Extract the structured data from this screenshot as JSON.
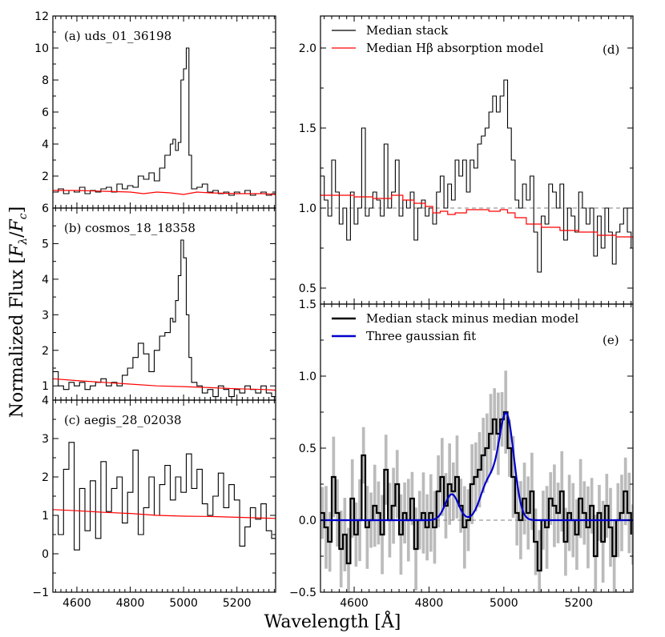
{
  "figure": {
    "xlabel": "Wavelength [Å]",
    "ylabel": "Normalized Flux [F_λ/F_c]",
    "ylabel_parts": {
      "prefix": "Normalized Flux [",
      "f1": "F",
      "sub1": "λ",
      "slash": "/",
      "f2": "F",
      "sub2": "c",
      "suffix": "]"
    }
  },
  "chart_data": [
    {
      "id": "a",
      "type": "line",
      "label": "(a) uds_01_36198",
      "xlim": [
        4510,
        5345
      ],
      "ylim": [
        0,
        12
      ],
      "yticks": [
        2,
        4,
        6,
        8,
        10,
        12
      ],
      "xticks": [],
      "series": [
        {
          "name": "Spectrum",
          "style": "step",
          "color": "#000000",
          "x": [
            4510,
            4530,
            4550,
            4570,
            4590,
            4610,
            4630,
            4650,
            4670,
            4690,
            4710,
            4730,
            4750,
            4770,
            4790,
            4810,
            4830,
            4850,
            4870,
            4890,
            4910,
            4930,
            4950,
            4960,
            4970,
            4980,
            4990,
            5000,
            5010,
            5020,
            5030,
            5050,
            5070,
            5090,
            5110,
            5130,
            5150,
            5170,
            5190,
            5210,
            5230,
            5250,
            5270,
            5290,
            5310,
            5330,
            5345
          ],
          "y": [
            1.0,
            1.2,
            0.9,
            1.1,
            1.0,
            1.3,
            0.9,
            1.1,
            1.0,
            1.2,
            1.3,
            1.0,
            1.5,
            1.2,
            1.4,
            1.3,
            2.0,
            1.8,
            2.2,
            1.7,
            2.5,
            3.3,
            4.0,
            4.3,
            3.6,
            4.1,
            8.0,
            8.7,
            10.0,
            3.3,
            1.2,
            1.3,
            1.5,
            1.0,
            1.1,
            0.9,
            1.0,
            0.8,
            1.0,
            0.9,
            1.1,
            0.8,
            0.9,
            1.0,
            0.8,
            0.9,
            0.8
          ]
        },
        {
          "name": "Absorption model",
          "style": "line",
          "color": "#ff0000",
          "x": [
            4510,
            4600,
            4700,
            4800,
            4850,
            4900,
            4950,
            5000,
            5050,
            5100,
            5200,
            5300,
            5345
          ],
          "y": [
            1.1,
            1.1,
            1.05,
            1.0,
            0.9,
            1.0,
            0.95,
            0.85,
            1.0,
            0.95,
            0.9,
            0.9,
            0.85
          ]
        }
      ]
    },
    {
      "id": "b",
      "type": "line",
      "label": "(b) cosmos_18_18358",
      "xlim": [
        4510,
        5345
      ],
      "ylim": [
        0.6,
        6
      ],
      "yticks": [
        1,
        2,
        3,
        4,
        5,
        6
      ],
      "xticks": [],
      "series": [
        {
          "name": "Spectrum",
          "style": "step",
          "color": "#000000",
          "x": [
            4510,
            4530,
            4550,
            4570,
            4590,
            4610,
            4630,
            4650,
            4670,
            4690,
            4710,
            4730,
            4750,
            4770,
            4790,
            4810,
            4830,
            4850,
            4870,
            4890,
            4910,
            4930,
            4950,
            4960,
            4970,
            4980,
            4990,
            5000,
            5010,
            5020,
            5030,
            5050,
            5070,
            5090,
            5110,
            5130,
            5150,
            5170,
            5190,
            5210,
            5230,
            5250,
            5270,
            5290,
            5310,
            5330,
            5345
          ],
          "y": [
            1.4,
            1.0,
            0.9,
            1.1,
            1.0,
            1.1,
            0.9,
            1.0,
            1.1,
            1.2,
            1.0,
            1.1,
            1.0,
            1.3,
            1.5,
            1.8,
            2.2,
            1.9,
            1.4,
            2.0,
            2.4,
            2.5,
            2.9,
            2.8,
            3.4,
            4.1,
            5.1,
            4.6,
            3.0,
            1.8,
            1.1,
            1.0,
            0.8,
            0.9,
            0.7,
            1.0,
            0.9,
            0.7,
            0.9,
            0.8,
            1.0,
            0.9,
            0.8,
            1.0,
            0.8,
            0.7,
            0.9
          ]
        },
        {
          "name": "Absorption model",
          "style": "line",
          "color": "#ff0000",
          "x": [
            4510,
            4600,
            4700,
            4800,
            4900,
            5000,
            5100,
            5200,
            5300,
            5345
          ],
          "y": [
            1.2,
            1.15,
            1.1,
            1.05,
            1.0,
            0.98,
            0.95,
            0.92,
            0.9,
            0.88
          ]
        }
      ]
    },
    {
      "id": "c",
      "type": "line",
      "label": "(c) aegis_28_02038",
      "xlim": [
        4510,
        5345
      ],
      "ylim": [
        -1,
        4
      ],
      "yticks": [
        -1,
        0,
        1,
        2,
        3,
        4
      ],
      "xticks": [
        4600,
        4800,
        5000,
        5200
      ],
      "series": [
        {
          "name": "Spectrum",
          "style": "step",
          "color": "#000000",
          "x": [
            4510,
            4530,
            4550,
            4570,
            4590,
            4610,
            4630,
            4650,
            4670,
            4690,
            4710,
            4730,
            4750,
            4770,
            4790,
            4810,
            4830,
            4850,
            4870,
            4890,
            4910,
            4930,
            4950,
            4970,
            4990,
            5010,
            5030,
            5050,
            5070,
            5090,
            5110,
            5130,
            5150,
            5170,
            5190,
            5210,
            5230,
            5250,
            5270,
            5290,
            5310,
            5330,
            5345
          ],
          "y": [
            1.0,
            0.5,
            2.2,
            2.9,
            0.1,
            1.7,
            0.6,
            1.9,
            0.4,
            2.4,
            1.1,
            1.7,
            2.0,
            0.8,
            1.6,
            2.7,
            0.5,
            1.2,
            2.0,
            1.0,
            1.8,
            2.3,
            1.4,
            2.0,
            1.6,
            2.6,
            1.7,
            2.2,
            1.3,
            1.0,
            1.5,
            2.1,
            1.2,
            1.8,
            1.4,
            0.2,
            0.7,
            1.2,
            0.9,
            1.3,
            0.6,
            0.4,
            0.0
          ]
        },
        {
          "name": "Absorption model",
          "style": "line",
          "color": "#ff0000",
          "x": [
            4510,
            4600,
            4700,
            4800,
            4900,
            5000,
            5100,
            5200,
            5300,
            5345
          ],
          "y": [
            1.15,
            1.12,
            1.08,
            1.05,
            1.0,
            0.98,
            0.97,
            0.95,
            0.93,
            0.92
          ]
        }
      ]
    },
    {
      "id": "d",
      "type": "line",
      "label": "(d)",
      "xlim": [
        4510,
        5345
      ],
      "ylim": [
        0.4,
        2.2
      ],
      "yticks": [
        0.5,
        1.0,
        1.5,
        2.0
      ],
      "xticks": [],
      "legend": [
        "Median stack",
        "Median Hβ absorption model"
      ],
      "series": [
        {
          "name": "Median stack",
          "style": "step",
          "color": "#000000",
          "x": [
            4510,
            4520,
            4530,
            4540,
            4550,
            4560,
            4570,
            4580,
            4590,
            4600,
            4610,
            4620,
            4630,
            4640,
            4650,
            4660,
            4670,
            4680,
            4690,
            4700,
            4710,
            4720,
            4730,
            4740,
            4750,
            4760,
            4770,
            4780,
            4790,
            4800,
            4810,
            4820,
            4830,
            4840,
            4850,
            4860,
            4870,
            4880,
            4890,
            4900,
            4910,
            4920,
            4930,
            4940,
            4950,
            4960,
            4970,
            4980,
            4990,
            5000,
            5010,
            5020,
            5030,
            5040,
            5050,
            5060,
            5070,
            5080,
            5090,
            5100,
            5110,
            5120,
            5130,
            5140,
            5150,
            5160,
            5170,
            5180,
            5190,
            5200,
            5210,
            5220,
            5230,
            5240,
            5250,
            5260,
            5270,
            5280,
            5290,
            5300,
            5310,
            5320,
            5330,
            5340
          ],
          "y": [
            1.2,
            1.05,
            0.95,
            1.3,
            1.1,
            0.9,
            1.0,
            0.8,
            1.1,
            0.9,
            1.0,
            1.5,
            0.95,
            1.0,
            1.1,
            1.05,
            0.95,
            1.4,
            1.0,
            1.1,
            1.3,
            0.95,
            1.05,
            1.0,
            1.1,
            0.8,
            1.0,
            1.05,
            0.95,
            1.0,
            0.9,
            1.1,
            1.2,
            1.0,
            1.15,
            1.05,
            1.3,
            1.2,
            1.3,
            1.1,
            1.3,
            1.25,
            1.4,
            1.45,
            1.5,
            1.6,
            1.7,
            1.6,
            1.7,
            1.8,
            1.5,
            1.3,
            1.05,
            1.0,
            1.15,
            1.05,
            1.2,
            0.85,
            0.6,
            0.95,
            0.9,
            1.15,
            1.1,
            1.0,
            1.15,
            0.8,
            1.0,
            0.95,
            0.85,
            1.1,
            1.0,
            0.9,
            1.0,
            0.7,
            0.95,
            0.75,
            1.0,
            0.85,
            0.65,
            0.85,
            0.9,
            1.0,
            0.85,
            0.75
          ]
        },
        {
          "name": "Median Hβ absorption model",
          "style": "step",
          "color": "#ff0000",
          "x": [
            4510,
            4550,
            4600,
            4650,
            4700,
            4730,
            4760,
            4790,
            4810,
            4830,
            4850,
            4870,
            4900,
            4930,
            4960,
            4990,
            5010,
            5030,
            5060,
            5100,
            5150,
            5200,
            5250,
            5300,
            5345
          ],
          "y": [
            1.08,
            1.08,
            1.07,
            1.06,
            1.08,
            1.05,
            1.03,
            1.01,
            0.97,
            0.98,
            0.96,
            0.97,
            0.99,
            0.99,
            0.98,
            0.99,
            0.97,
            0.94,
            0.9,
            0.88,
            0.86,
            0.85,
            0.83,
            0.82,
            0.8
          ]
        }
      ],
      "reference_line": {
        "y": 1.0,
        "style": "dashed",
        "color": "#808080"
      }
    },
    {
      "id": "e",
      "type": "line",
      "label": "(e)",
      "xlim": [
        4510,
        5345
      ],
      "ylim": [
        -0.5,
        1.5
      ],
      "yticks": [
        -0.5,
        0.0,
        0.5,
        1.0,
        1.5
      ],
      "xticks": [
        4600,
        4800,
        5000,
        5200
      ],
      "legend": [
        "Median stack minus median model",
        "Three gaussian fit"
      ],
      "series": [
        {
          "name": "Median stack minus median model",
          "style": "step",
          "color": "#000000",
          "x": [
            4510,
            4520,
            4530,
            4540,
            4550,
            4560,
            4570,
            4580,
            4590,
            4600,
            4610,
            4620,
            4630,
            4640,
            4650,
            4660,
            4670,
            4680,
            4690,
            4700,
            4710,
            4720,
            4730,
            4740,
            4750,
            4760,
            4770,
            4780,
            4790,
            4800,
            4810,
            4820,
            4830,
            4840,
            4850,
            4860,
            4870,
            4880,
            4890,
            4900,
            4910,
            4920,
            4930,
            4940,
            4950,
            4960,
            4970,
            4980,
            4990,
            5000,
            5010,
            5020,
            5030,
            5040,
            5050,
            5060,
            5070,
            5080,
            5090,
            5100,
            5110,
            5120,
            5130,
            5140,
            5150,
            5160,
            5170,
            5180,
            5190,
            5200,
            5210,
            5220,
            5230,
            5240,
            5250,
            5260,
            5270,
            5280,
            5290,
            5300,
            5310,
            5320,
            5330,
            5340
          ],
          "y": [
            0.05,
            -0.05,
            -0.15,
            0.3,
            0.05,
            -0.2,
            -0.1,
            -0.3,
            0.15,
            -0.1,
            0.0,
            0.45,
            -0.05,
            0.0,
            0.1,
            0.05,
            -0.1,
            0.35,
            0.0,
            0.1,
            0.25,
            -0.1,
            0.05,
            0.0,
            0.15,
            -0.2,
            0.0,
            0.05,
            -0.05,
            0.05,
            -0.05,
            0.2,
            0.3,
            0.1,
            0.25,
            0.2,
            0.3,
            0.1,
            -0.05,
            0.0,
            0.25,
            0.3,
            0.35,
            0.45,
            0.5,
            0.6,
            0.7,
            0.6,
            0.7,
            0.75,
            0.5,
            0.3,
            0.05,
            0.0,
            0.15,
            0.05,
            0.2,
            -0.15,
            -0.35,
            0.0,
            -0.05,
            0.15,
            0.1,
            0.05,
            0.2,
            -0.15,
            0.05,
            0.0,
            -0.1,
            0.15,
            0.05,
            -0.05,
            0.1,
            -0.25,
            0.05,
            -0.15,
            0.1,
            -0.05,
            -0.25,
            0.0,
            0.05,
            0.2,
            0.05,
            -0.1
          ]
        },
        {
          "name": "Three gaussian fit",
          "style": "line",
          "color": "#0000cc",
          "gaussians": [
            {
              "amp": 0.18,
              "center": 4861,
              "sigma": 18
            },
            {
              "amp": 0.26,
              "center": 4959,
              "sigma": 22
            },
            {
              "amp": 0.72,
              "center": 5007,
              "sigma": 20
            }
          ]
        }
      ],
      "error_band": {
        "color": "#bbbbbb",
        "halfwidth": 0.18
      },
      "reference_line": {
        "y": 0.0,
        "style": "dashed",
        "color": "#808080"
      }
    }
  ]
}
